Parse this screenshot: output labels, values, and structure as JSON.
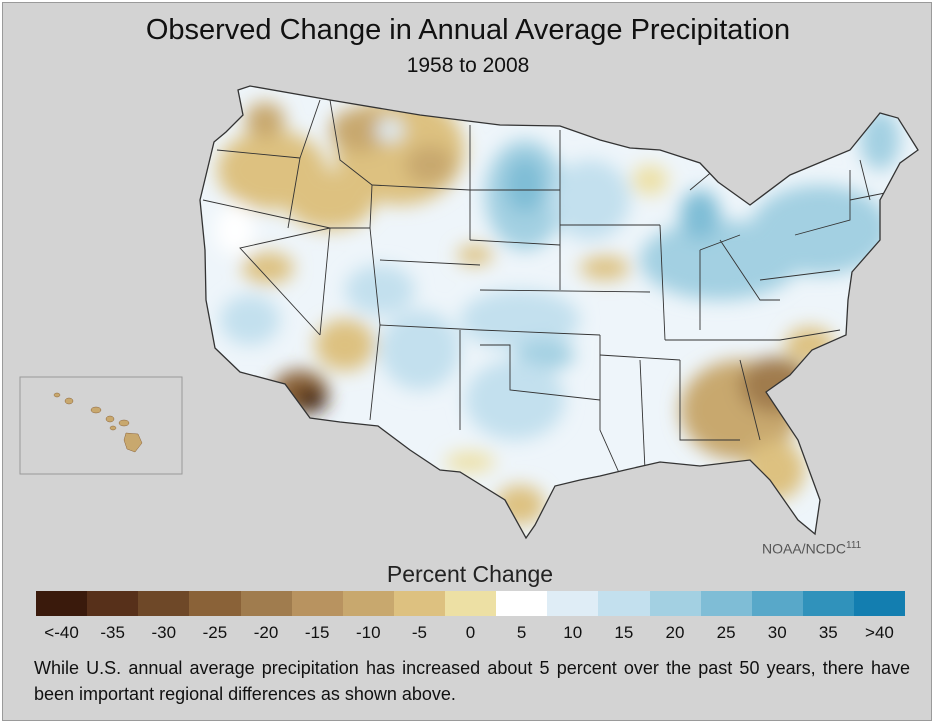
{
  "title": "Observed Change in Annual Average Precipitation",
  "subtitle": "1958 to 2008",
  "credit": "NOAA/NCDC",
  "credit_ref": "111",
  "legend": {
    "title": "Percent Change",
    "ticks": [
      "<-40",
      "-35",
      "-30",
      "-25",
      "-20",
      "-15",
      "-10",
      "-5",
      "0",
      "5",
      "10",
      "15",
      "20",
      "25",
      "30",
      "35",
      ">40"
    ],
    "colors": [
      "#3a1a0c",
      "#57301a",
      "#6e4828",
      "#8a6238",
      "#a07c4e",
      "#b89360",
      "#c8a86e",
      "#ddc180",
      "#ede0a4",
      "#ffffff",
      "#dfedf6",
      "#c3e0ee",
      "#a3d0e2",
      "#7fbdd6",
      "#58a8c9",
      "#3092bb",
      "#137eb0"
    ]
  },
  "caption": "While U.S. annual average precipitation has increased about 5 percent over the past 50 years, there have been important regional differences as shown above."
}
